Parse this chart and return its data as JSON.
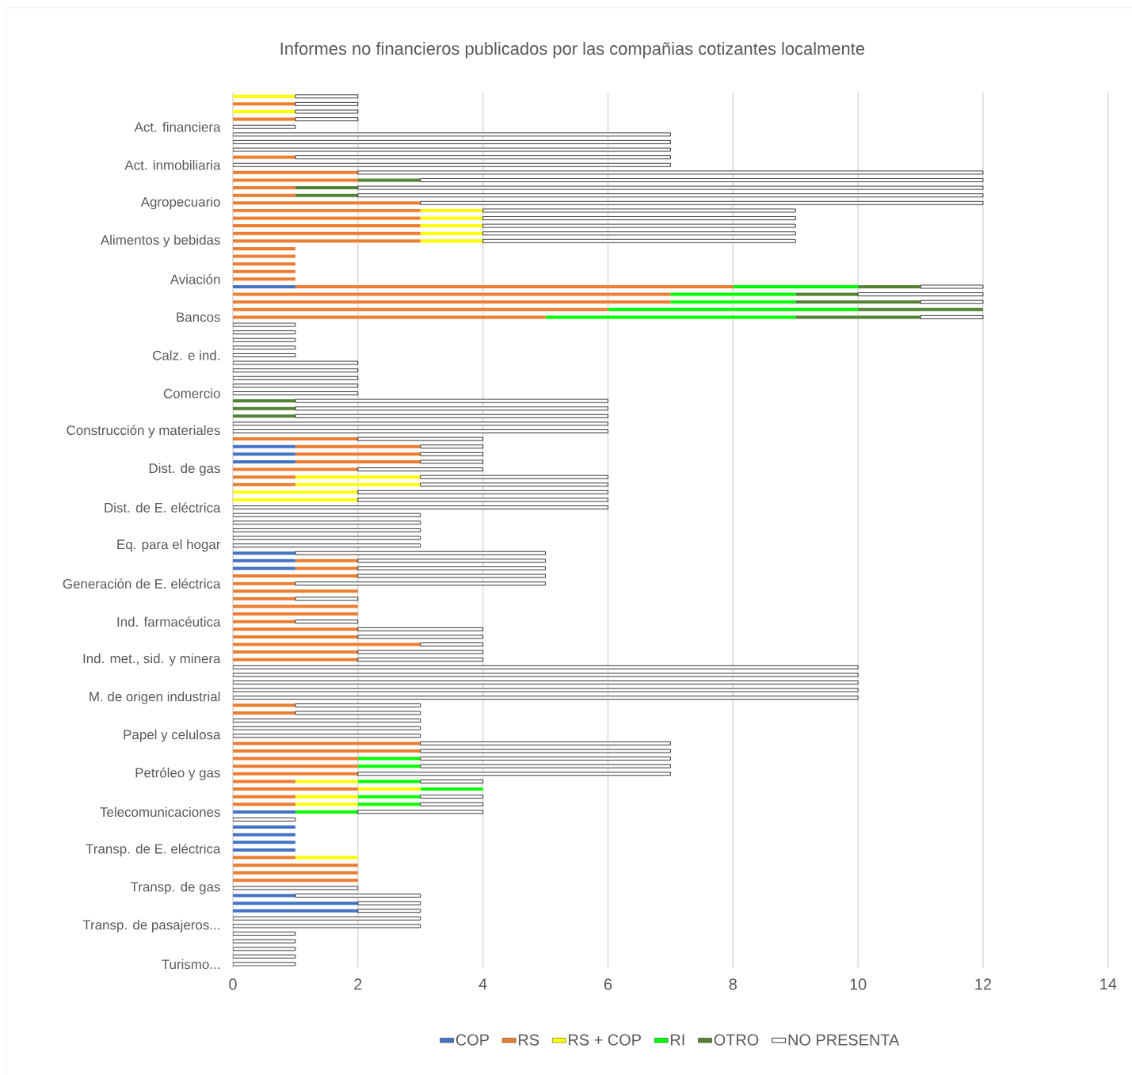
{
  "chart_data": {
    "type": "bar",
    "orientation": "horizontal",
    "stacked": true,
    "title": "Informes no financieros publicados por las compañias cotizantes localmente",
    "categories": [
      null,
      null,
      null,
      null,
      "Act. financiera",
      null,
      null,
      null,
      null,
      "Act. inmobiliaria",
      null,
      null,
      null,
      null,
      "Agropecuario",
      null,
      null,
      null,
      null,
      "Alimentos y bebidas",
      null,
      null,
      null,
      null,
      "Aviación",
      null,
      null,
      null,
      null,
      "Bancos",
      null,
      null,
      null,
      null,
      "Calz. e ind.",
      null,
      null,
      null,
      null,
      "Comercio",
      null,
      null,
      null,
      null,
      "Construcción y materiales",
      null,
      null,
      null,
      null,
      "Dist. de gas",
      null,
      null,
      null,
      null,
      "Dist. de E. eléctrica",
      null,
      null,
      null,
      null,
      "Eq. para el hogar",
      null,
      null,
      null,
      null,
      "Generación de E. eléctrica",
      null,
      null,
      null,
      null,
      "Ind. farmacéutica",
      null,
      null,
      null,
      null,
      "Ind. met., sid. y minera",
      null,
      null,
      null,
      null,
      "M. de origen industrial",
      null,
      null,
      null,
      null,
      "Papel y celulosa",
      null,
      null,
      null,
      null,
      "Petróleo y gas",
      null,
      null,
      null,
      null,
      "Telecomunicaciones",
      null,
      null,
      null,
      null,
      "Transp. de E. eléctrica",
      null,
      null,
      null,
      null,
      "Transp. de gas",
      null,
      null,
      null,
      null,
      "Transp. de pasajeros...",
      null,
      null,
      null,
      null,
      "Turismo..."
    ],
    "series": [
      {
        "name": "COP",
        "color": "#4472c4",
        "values": [
          0,
          0,
          0,
          0,
          0,
          0,
          0,
          0,
          0,
          0,
          0,
          0,
          0,
          0,
          0,
          0,
          0,
          0,
          0,
          0,
          0,
          0,
          0,
          0,
          0,
          1,
          0,
          0,
          0,
          0,
          0,
          0,
          0,
          0,
          0,
          0,
          0,
          0,
          0,
          0,
          0,
          0,
          0,
          0,
          0,
          0,
          1,
          1,
          1,
          0,
          0,
          0,
          0,
          0,
          0,
          0,
          0,
          0,
          0,
          0,
          1,
          1,
          1,
          0,
          0,
          0,
          0,
          0,
          0,
          0,
          0,
          0,
          0,
          0,
          0,
          0,
          0,
          0,
          0,
          0,
          0,
          0,
          0,
          0,
          0,
          0,
          0,
          0,
          0,
          0,
          0,
          0,
          0,
          0,
          1,
          0,
          1,
          1,
          1,
          1,
          0,
          0,
          0,
          0,
          0,
          1,
          2,
          2,
          0,
          0,
          0,
          0,
          0,
          0,
          0
        ]
      },
      {
        "name": "RS",
        "color": "#ed7d31",
        "values": [
          0,
          1,
          0,
          1,
          0,
          0,
          0,
          0,
          1,
          0,
          2,
          2,
          1,
          1,
          3,
          3,
          3,
          3,
          3,
          3,
          1,
          1,
          1,
          1,
          1,
          7,
          7,
          7,
          6,
          5,
          0,
          0,
          0,
          0,
          0,
          0,
          0,
          0,
          0,
          0,
          0,
          0,
          0,
          0,
          0,
          2,
          2,
          2,
          2,
          2,
          1,
          1,
          0,
          0,
          0,
          0,
          0,
          0,
          0,
          0,
          0,
          1,
          1,
          2,
          1,
          2,
          1,
          2,
          2,
          1,
          2,
          2,
          3,
          2,
          2,
          0,
          0,
          0,
          0,
          0,
          1,
          1,
          0,
          0,
          0,
          3,
          3,
          2,
          2,
          2,
          1,
          2,
          1,
          1,
          0,
          0,
          0,
          0,
          0,
          0,
          1,
          2,
          2,
          2,
          0,
          0,
          0,
          0,
          0,
          0,
          0,
          0,
          0,
          0,
          0
        ]
      },
      {
        "name": "RS + COP",
        "color": "#ffff00",
        "values": [
          1,
          0,
          1,
          0,
          0,
          0,
          0,
          0,
          0,
          0,
          0,
          0,
          0,
          0,
          0,
          1,
          1,
          1,
          1,
          1,
          0,
          0,
          0,
          0,
          0,
          0,
          0,
          0,
          0,
          0,
          0,
          0,
          0,
          0,
          0,
          0,
          0,
          0,
          0,
          0,
          0,
          0,
          0,
          0,
          0,
          0,
          0,
          0,
          0,
          0,
          2,
          2,
          2,
          2,
          0,
          0,
          0,
          0,
          0,
          0,
          0,
          0,
          0,
          0,
          0,
          0,
          0,
          0,
          0,
          0,
          0,
          0,
          0,
          0,
          0,
          0,
          0,
          0,
          0,
          0,
          0,
          0,
          0,
          0,
          0,
          0,
          0,
          0,
          0,
          0,
          1,
          1,
          1,
          1,
          0,
          0,
          0,
          0,
          0,
          0,
          1,
          0,
          0,
          0,
          0,
          0,
          0,
          0,
          0,
          0,
          0,
          0,
          0,
          0,
          0
        ]
      },
      {
        "name": "RI",
        "color": "#00ff00",
        "values": [
          0,
          0,
          0,
          0,
          0,
          0,
          0,
          0,
          0,
          0,
          0,
          0,
          0,
          0,
          0,
          0,
          0,
          0,
          0,
          0,
          0,
          0,
          0,
          0,
          0,
          2,
          2,
          2,
          4,
          4,
          0,
          0,
          0,
          0,
          0,
          0,
          0,
          0,
          0,
          0,
          0,
          0,
          0,
          0,
          0,
          0,
          0,
          0,
          0,
          0,
          0,
          0,
          0,
          0,
          0,
          0,
          0,
          0,
          0,
          0,
          0,
          0,
          0,
          0,
          0,
          0,
          0,
          0,
          0,
          0,
          0,
          0,
          0,
          0,
          0,
          0,
          0,
          0,
          0,
          0,
          0,
          0,
          0,
          0,
          0,
          0,
          0,
          1,
          1,
          0,
          1,
          1,
          1,
          1,
          1,
          0,
          0,
          0,
          0,
          0,
          0,
          0,
          0,
          0,
          0,
          0,
          0,
          0,
          0,
          0,
          0,
          0,
          0,
          0,
          0
        ]
      },
      {
        "name": "OTRO",
        "color": "#548235",
        "values": [
          0,
          0,
          0,
          0,
          0,
          0,
          0,
          0,
          0,
          0,
          0,
          1,
          1,
          1,
          0,
          0,
          0,
          0,
          0,
          0,
          0,
          0,
          0,
          0,
          0,
          1,
          1,
          2,
          2,
          2,
          0,
          0,
          0,
          0,
          0,
          0,
          0,
          0,
          0,
          0,
          1,
          1,
          1,
          0,
          0,
          0,
          0,
          0,
          0,
          0,
          0,
          0,
          0,
          0,
          0,
          0,
          0,
          0,
          0,
          0,
          0,
          0,
          0,
          0,
          0,
          0,
          0,
          0,
          0,
          0,
          0,
          0,
          0,
          0,
          0,
          0,
          0,
          0,
          0,
          0,
          0,
          0,
          0,
          0,
          0,
          0,
          0,
          0,
          0,
          0,
          0,
          0,
          0,
          0,
          0,
          0,
          0,
          0,
          0,
          0,
          0,
          0,
          0,
          0,
          0,
          0,
          0,
          0,
          0,
          0,
          0,
          0,
          0,
          0,
          0
        ]
      },
      {
        "name": "NO PRESENTA",
        "color": "#ffffff",
        "values": [
          1,
          1,
          1,
          1,
          1,
          7,
          7,
          7,
          6,
          7,
          10,
          9,
          10,
          10,
          9,
          5,
          5,
          5,
          5,
          5,
          0,
          0,
          0,
          0,
          0,
          1,
          2,
          1,
          0,
          1,
          1,
          1,
          1,
          1,
          1,
          2,
          2,
          2,
          2,
          2,
          5,
          5,
          5,
          6,
          6,
          2,
          1,
          1,
          1,
          2,
          3,
          3,
          4,
          4,
          6,
          3,
          3,
          3,
          3,
          3,
          4,
          3,
          3,
          3,
          4,
          0,
          1,
          0,
          0,
          1,
          2,
          2,
          1,
          2,
          2,
          10,
          10,
          10,
          10,
          10,
          2,
          2,
          3,
          3,
          3,
          4,
          4,
          4,
          4,
          5,
          1,
          0,
          1,
          1,
          2,
          1,
          0,
          0,
          0,
          0,
          0,
          0,
          0,
          0,
          2,
          2,
          1,
          1,
          3,
          3,
          1,
          1,
          1,
          1,
          1
        ]
      }
    ],
    "xlim": [
      0,
      14
    ],
    "xticks": [
      0,
      2,
      4,
      6,
      8,
      10,
      12,
      14
    ],
    "grid": "x",
    "legend": "bottom"
  }
}
